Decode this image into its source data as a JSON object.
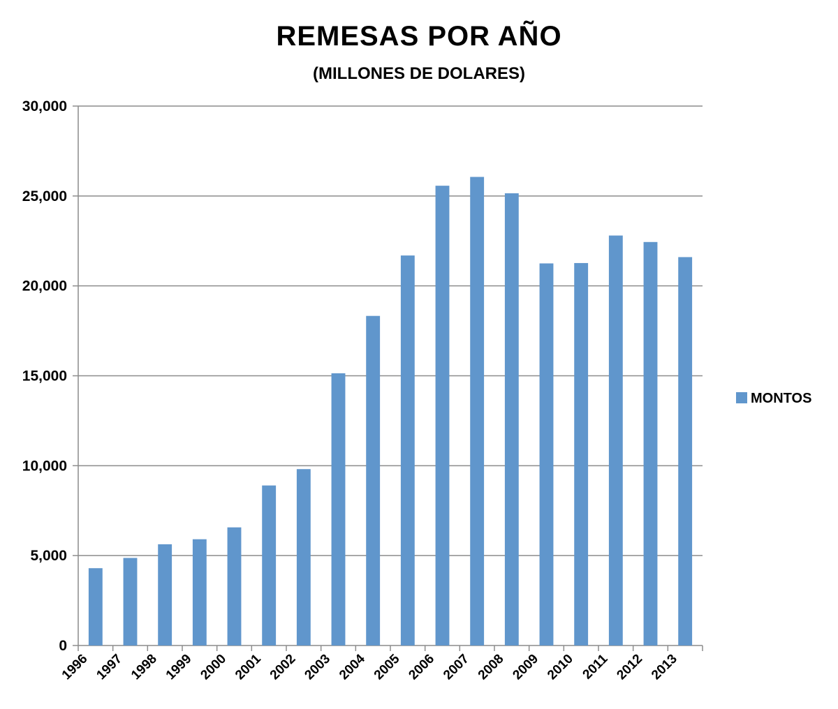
{
  "chart_data": {
    "type": "bar",
    "title": "REMESAS POR AÑO",
    "subtitle": "(MILLONES DE DOLARES)",
    "xlabel": "",
    "ylabel": "",
    "categories": [
      "1996",
      "1997",
      "1998",
      "1999",
      "2000",
      "2001",
      "2002",
      "2003",
      "2004",
      "2005",
      "2006",
      "2007",
      "2008",
      "2009",
      "2010",
      "2011",
      "2012",
      "2013"
    ],
    "series": [
      {
        "name": "MONTOS",
        "color": "#6096CC",
        "values": [
          4300,
          4870,
          5630,
          5910,
          6570,
          8900,
          9810,
          15140,
          18330,
          21690,
          25570,
          26060,
          25150,
          21250,
          21270,
          22800,
          22440,
          21600
        ]
      }
    ],
    "ylim": [
      0,
      30000
    ],
    "yticks": [
      0,
      5000,
      10000,
      15000,
      20000,
      25000,
      30000
    ],
    "ytick_labels": [
      "0",
      "5,000",
      "10,000",
      "15,000",
      "20,000",
      "25,000",
      "30,000"
    ],
    "grid": true,
    "legend_position": "right"
  }
}
